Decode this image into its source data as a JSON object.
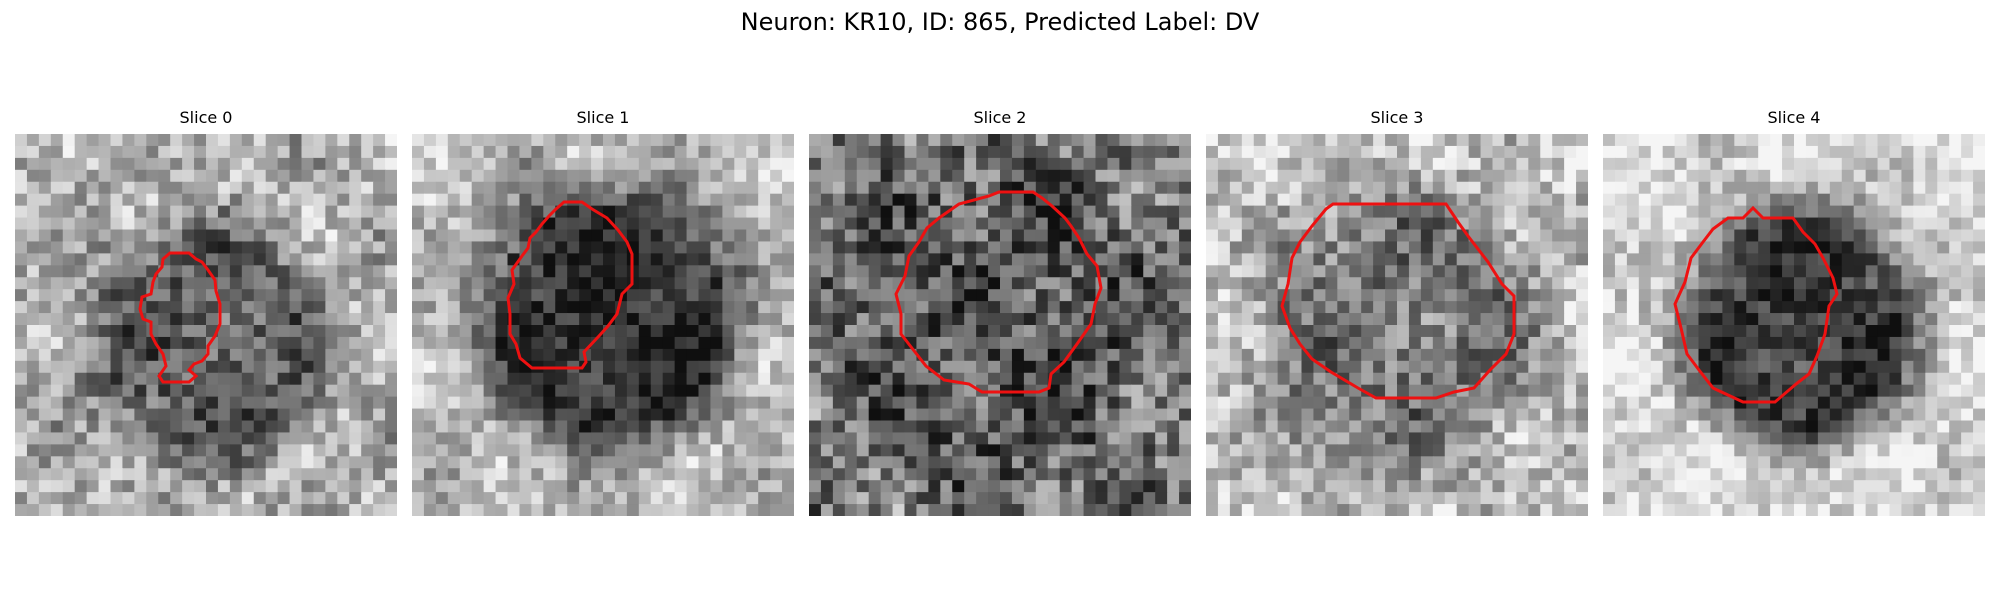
{
  "figure": {
    "title": "Neuron: KR10, ID: 865, Predicted Label: DV",
    "outline_color": "#ee1111"
  },
  "slices": [
    {
      "title": "Slice 0"
    },
    {
      "title": "Slice 1"
    },
    {
      "title": "Slice 2"
    },
    {
      "title": "Slice 3"
    },
    {
      "title": "Slice 4"
    }
  ]
}
